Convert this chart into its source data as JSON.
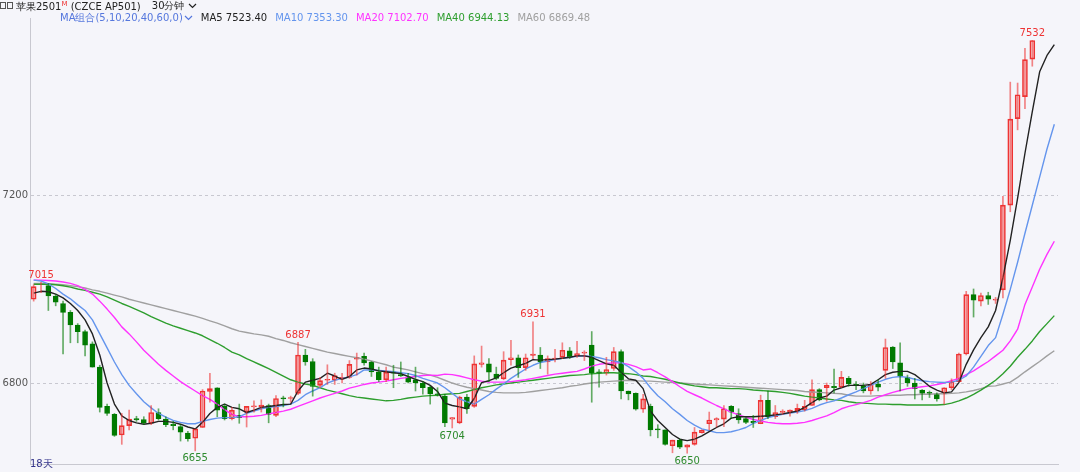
{
  "chart_data": {
    "type": "candlestick",
    "title": "苹果2501$^{M}$ (CZCE AP501)",
    "subtitle": "30分钟",
    "legend_title": "MA组合(5,10,20,40,60,0)",
    "legend": "top left",
    "grid": "y",
    "tick_labels": "y",
    "ylim": [
      6627,
      7580
    ],
    "yticks": [
      6800,
      7200
    ],
    "annotations": [
      {
        "text": "7015",
        "y": 7015
      },
      {
        "text": "6655",
        "y": 6655
      },
      {
        "text": "6887",
        "y": 6887
      },
      {
        "text": "6704",
        "y": 6704
      },
      {
        "text": "6931",
        "y": 6931
      },
      {
        "text": "6650",
        "y": 6650
      },
      {
        "text": "7532",
        "y": 7532
      },
      "18天"
    ],
    "categories": [
      null,
      null,
      null,
      null,
      null,
      null,
      null,
      null,
      null,
      null,
      null,
      null,
      null,
      null,
      null,
      null,
      null,
      null,
      null,
      null,
      null,
      null,
      null,
      null,
      null,
      null,
      null,
      null,
      null,
      null,
      null,
      null,
      null,
      null,
      null,
      null,
      null,
      null,
      null,
      null,
      null,
      null,
      null,
      null,
      null,
      null,
      null,
      null,
      null,
      null,
      null,
      null,
      null,
      null,
      null,
      null,
      null,
      null,
      null,
      null,
      null,
      null,
      null,
      null,
      null,
      null,
      null,
      null,
      null,
      null,
      null,
      null,
      null,
      null,
      null,
      null,
      null,
      null,
      null,
      null,
      null,
      null,
      null,
      null,
      null,
      null,
      null,
      null,
      null,
      null,
      null,
      null,
      null,
      null,
      null,
      null,
      null,
      null,
      null,
      null,
      null,
      null,
      null,
      null,
      null,
      null,
      null,
      null,
      null,
      null,
      null,
      null,
      null,
      null,
      null,
      null,
      null,
      null,
      null,
      null,
      null,
      null,
      null,
      null,
      null,
      null,
      null,
      null,
      null,
      null,
      null,
      null,
      null,
      null,
      null,
      null,
      null,
      null,
      null,
      null
    ],
    "ohlc": [
      [
        6979,
        7010,
        6975,
        7006
      ],
      [
        7010,
        7015,
        6993,
        7013
      ],
      [
        7008,
        7013,
        6955,
        6986
      ],
      [
        6986,
        6989,
        6965,
        6973
      ],
      [
        6970,
        6975,
        6862,
        6951
      ],
      [
        6951,
        6955,
        6886,
        6924
      ],
      [
        6924,
        6927,
        6886,
        6910
      ],
      [
        6910,
        6913,
        6858,
        6881
      ],
      [
        6884,
        6888,
        6834,
        6834
      ],
      [
        6834,
        6838,
        6738,
        6748
      ],
      [
        6750,
        6755,
        6731,
        6735
      ],
      [
        6733,
        6735,
        6686,
        6688
      ],
      [
        6689,
        6735,
        6669,
        6709
      ],
      [
        6709,
        6742,
        6700,
        6723
      ],
      [
        6724,
        6729,
        6718,
        6721
      ],
      [
        6722,
        6728,
        6711,
        6714
      ],
      [
        6714,
        6752,
        6711,
        6737
      ],
      [
        6737,
        6745,
        6721,
        6724
      ],
      [
        6723,
        6728,
        6707,
        6711
      ],
      [
        6712,
        6718,
        6700,
        6709
      ],
      [
        6707,
        6711,
        6676,
        6695
      ],
      [
        6693,
        6697,
        6676,
        6681
      ],
      [
        6682,
        6702,
        6655,
        6702
      ],
      [
        6705,
        6786,
        6705,
        6783
      ],
      [
        6782,
        6821,
        6759,
        6788
      ],
      [
        6790,
        6790,
        6728,
        6742
      ],
      [
        6750,
        6755,
        6721,
        6724
      ],
      [
        6724,
        6748,
        6721,
        6742
      ],
      [
        6731,
        6755,
        6714,
        6726
      ],
      [
        6738,
        6750,
        6706,
        6750
      ],
      [
        6749,
        6762,
        6738,
        6749
      ],
      [
        6749,
        6764,
        6738,
        6753
      ],
      [
        6752,
        6755,
        6715,
        6733
      ],
      [
        6731,
        6773,
        6728,
        6767
      ],
      [
        6768,
        6772,
        6749,
        6766
      ],
      [
        6767,
        6772,
        6759,
        6767
      ],
      [
        6778,
        6887,
        6775,
        6860
      ],
      [
        6860,
        6872,
        6838,
        6845
      ],
      [
        6846,
        6852,
        6772,
        6793
      ],
      [
        6795,
        6812,
        6790,
        6805
      ],
      [
        6806,
        6839,
        6797,
        6808
      ],
      [
        6806,
        6821,
        6797,
        6816
      ],
      [
        6810,
        6821,
        6800,
        6810
      ],
      [
        6812,
        6848,
        6810,
        6840
      ],
      [
        6851,
        6864,
        6817,
        6855
      ],
      [
        6857,
        6864,
        6838,
        6843
      ],
      [
        6845,
        6846,
        6814,
        6824
      ],
      [
        6824,
        6834,
        6803,
        6807
      ],
      [
        6807,
        6834,
        6803,
        6823
      ],
      [
        6824,
        6838,
        6790,
        6821
      ],
      [
        6818,
        6845,
        6814,
        6815
      ],
      [
        6812,
        6821,
        6800,
        6802
      ],
      [
        6807,
        6834,
        6783,
        6800
      ],
      [
        6800,
        6803,
        6776,
        6790
      ],
      [
        6791,
        6793,
        6755,
        6777
      ],
      [
        6777,
        6790,
        6772,
        6775
      ],
      [
        6772,
        6776,
        6707,
        6715
      ],
      [
        6723,
        6726,
        6704,
        6726
      ],
      [
        6715,
        6772,
        6713,
        6770
      ],
      [
        6770,
        6776,
        6735,
        6745
      ],
      [
        6750,
        6858,
        6748,
        6841
      ],
      [
        6840,
        6879,
        6834,
        6843
      ],
      [
        6841,
        6852,
        6803,
        6823
      ],
      [
        6819,
        6834,
        6807,
        6810
      ],
      [
        6809,
        6867,
        6807,
        6849
      ],
      [
        6850,
        6891,
        6838,
        6854
      ],
      [
        6854,
        6860,
        6812,
        6833
      ],
      [
        6833,
        6862,
        6827,
        6854
      ],
      [
        6859,
        6931,
        6852,
        6862
      ],
      [
        6860,
        6876,
        6831,
        6845
      ],
      [
        6845,
        6858,
        6819,
        6852
      ],
      [
        6851,
        6872,
        6845,
        6851
      ],
      [
        6855,
        6886,
        6852,
        6870
      ],
      [
        6869,
        6876,
        6852,
        6855
      ],
      [
        6858,
        6889,
        6855,
        6863
      ],
      [
        6864,
        6869,
        6848,
        6864
      ],
      [
        6881,
        6910,
        6759,
        6821
      ],
      [
        6824,
        6829,
        6791,
        6821
      ],
      [
        6821,
        6855,
        6817,
        6829
      ],
      [
        6831,
        6876,
        6827,
        6867
      ],
      [
        6867,
        6871,
        6766,
        6783
      ],
      [
        6783,
        6783,
        6764,
        6777
      ],
      [
        6778,
        6779,
        6742,
        6744
      ],
      [
        6744,
        6776,
        6737,
        6766
      ],
      [
        6750,
        6755,
        6687,
        6700
      ],
      [
        6702,
        6711,
        6683,
        6700
      ],
      [
        6700,
        6700,
        6667,
        6669
      ],
      [
        6666,
        6678,
        6651,
        6678
      ],
      [
        6678,
        6680,
        6660,
        6663
      ],
      [
        6663,
        6668,
        6650,
        6668
      ],
      [
        6669,
        6705,
        6667,
        6695
      ],
      [
        6694,
        6700,
        6693,
        6699
      ],
      [
        6713,
        6738,
        6700,
        6721
      ],
      [
        6721,
        6726,
        6706,
        6724
      ],
      [
        6723,
        6752,
        6707,
        6745
      ],
      [
        6750,
        6752,
        6724,
        6738
      ],
      [
        6735,
        6745,
        6714,
        6721
      ],
      [
        6724,
        6726,
        6713,
        6716
      ],
      [
        6718,
        6731,
        6705,
        6715
      ],
      [
        6713,
        6774,
        6713,
        6763
      ],
      [
        6763,
        6783,
        6724,
        6728
      ],
      [
        6728,
        6752,
        6724,
        6737
      ],
      [
        6737,
        6743,
        6733,
        6740
      ],
      [
        6738,
        6743,
        6729,
        6742
      ],
      [
        6740,
        6755,
        6735,
        6746
      ],
      [
        6743,
        6763,
        6740,
        6750
      ],
      [
        6752,
        6807,
        6752,
        6786
      ],
      [
        6786,
        6788,
        6762,
        6764
      ],
      [
        6790,
        6800,
        6761,
        6795
      ],
      [
        6793,
        6830,
        6779,
        6790
      ],
      [
        6791,
        6825,
        6790,
        6812
      ],
      [
        6810,
        6814,
        6793,
        6798
      ],
      [
        6797,
        6803,
        6786,
        6795
      ],
      [
        6793,
        6800,
        6779,
        6783
      ],
      [
        6783,
        6803,
        6776,
        6798
      ],
      [
        6798,
        6807,
        6783,
        6791
      ],
      [
        6827,
        6894,
        6810,
        6876
      ],
      [
        6877,
        6878,
        6831,
        6845
      ],
      [
        6843,
        6886,
        6783,
        6814
      ],
      [
        6812,
        6817,
        6793,
        6800
      ],
      [
        6800,
        6810,
        6766,
        6788
      ],
      [
        6785,
        6786,
        6764,
        6778
      ],
      [
        6780,
        6783,
        6769,
        6778
      ],
      [
        6777,
        6779,
        6761,
        6766
      ],
      [
        6777,
        6790,
        6755,
        6790
      ],
      [
        6790,
        6809,
        6786,
        6803
      ],
      [
        6803,
        6864,
        6803,
        6862
      ],
      [
        6862,
        6996,
        6860,
        6989
      ],
      [
        6989,
        7001,
        6941,
        6977
      ],
      [
        6975,
        6992,
        6965,
        6987
      ],
      [
        6987,
        6994,
        6968,
        6979
      ],
      [
        6977,
        6983,
        6970,
        6979
      ],
      [
        6999,
        7199,
        6982,
        7180
      ],
      [
        7180,
        7443,
        7166,
        7364
      ],
      [
        7365,
        7441,
        7341,
        7416
      ],
      [
        7412,
        7515,
        7386,
        7491
      ],
      [
        7492,
        7532,
        7477,
        7532
      ],
      null,
      null,
      null
    ],
    "series": [
      {
        "type": "line",
        "name": "MA5 7523.40",
        "color": "#222222",
        "values": [
          6992,
          6996,
          6995,
          6990,
          6982,
          6970,
          6955,
          6935,
          6905,
          6860,
          6800,
          6755,
          6730,
          6720,
          6715,
          6712,
          6714,
          6718,
          6718,
          6716,
          6712,
          6706,
          6702,
          6716,
          6735,
          6748,
          6755,
          6748,
          6745,
          6737,
          6742,
          6748,
          6750,
          6752,
          6754,
          6755,
          6783,
          6802,
          6806,
          6810,
          6821,
          6815,
          6808,
          6814,
          6828,
          6832,
          6830,
          6826,
          6824,
          6822,
          6820,
          6814,
          6808,
          6803,
          6795,
          6782,
          6757,
          6752,
          6749,
          6745,
          6767,
          6801,
          6805,
          6811,
          6822,
          6832,
          6837,
          6842,
          6850,
          6849,
          6850,
          6851,
          6853,
          6855,
          6858,
          6858,
          6855,
          6848,
          6841,
          6838,
          6823,
          6809,
          6806,
          6788,
          6740,
          6720,
          6705,
          6690,
          6680,
          6677,
          6680,
          6687,
          6696,
          6705,
          6713,
          6725,
          6728,
          6728,
          6728,
          6729,
          6730,
          6732,
          6734,
          6737,
          6740,
          6748,
          6758,
          6768,
          6772,
          6785,
          6790,
          6795,
          6795,
          6795,
          6797,
          6807,
          6818,
          6823,
          6825,
          6825,
          6818,
          6806,
          6793,
          6785,
          6779,
          6781,
          6801,
          6840,
          6871,
          6897,
          6920,
          6955,
          7025,
          7105,
          7195,
          7291,
          7380,
          7465,
          7500,
          7523
        ]
      },
      {
        "type": "line",
        "name": "MA10 7353.30",
        "color": "#6495ed",
        "values": [
          7020,
          7018,
          7012,
          7002,
          6990,
          6980,
          6967,
          6955,
          6935,
          6905,
          6875,
          6845,
          6818,
          6795,
          6777,
          6760,
          6747,
          6735,
          6727,
          6720,
          6716,
          6713,
          6713,
          6718,
          6722,
          6725,
          6726,
          6726,
          6728,
          6735,
          6740,
          6745,
          6748,
          6750,
          6752,
          6755,
          6763,
          6775,
          6783,
          6790,
          6800,
          6806,
          6810,
          6813,
          6818,
          6828,
          6828,
          6827,
          6826,
          6824,
          6822,
          6820,
          6816,
          6810,
          6805,
          6800,
          6790,
          6778,
          6766,
          6760,
          6755,
          6765,
          6775,
          6787,
          6798,
          6810,
          6820,
          6830,
          6838,
          6844,
          6847,
          6850,
          6853,
          6855,
          6857,
          6858,
          6857,
          6854,
          6850,
          6847,
          6844,
          6835,
          6824,
          6810,
          6790,
          6773,
          6760,
          6745,
          6733,
          6720,
          6710,
          6702,
          6698,
          6694,
          6694,
          6696,
          6700,
          6705,
          6714,
          6720,
          6726,
          6730,
          6733,
          6736,
          6738,
          6741,
          6746,
          6753,
          6758,
          6762,
          6768,
          6775,
          6781,
          6788,
          6795,
          6802,
          6808,
          6812,
          6814,
          6812,
          6808,
          6805,
          6803,
          6802,
          6801,
          6802,
          6806,
          6815,
          6834,
          6857,
          6880,
          6897,
          6947,
          7000,
          7058,
          7120,
          7180,
          7240,
          7300,
          7353
        ]
      },
      {
        "type": "line",
        "name": "MA20 7102.70",
        "color": "#ff33ff",
        "values": [
          7020,
          7020,
          7019,
          7018,
          7016,
          7013,
          7008,
          7000,
          6990,
          6975,
          6958,
          6940,
          6920,
          6905,
          6888,
          6870,
          6855,
          6840,
          6827,
          6815,
          6803,
          6793,
          6783,
          6773,
          6765,
          6755,
          6743,
          6733,
          6728,
          6728,
          6729,
          6731,
          6734,
          6737,
          6740,
          6744,
          6750,
          6756,
          6762,
          6768,
          6773,
          6778,
          6783,
          6789,
          6793,
          6797,
          6800,
          6802,
          6804,
          6807,
          6810,
          6812,
          6814,
          6816,
          6817,
          6816,
          6819,
          6818,
          6815,
          6811,
          6807,
          6804,
          6802,
          6802,
          6802,
          6803,
          6805,
          6807,
          6810,
          6813,
          6816,
          6819,
          6821,
          6823,
          6825,
          6830,
          6836,
          6840,
          6842,
          6843,
          6843,
          6840,
          6835,
          6828,
          6830,
          6822,
          6813,
          6803,
          6792,
          6782,
          6775,
          6768,
          6760,
          6752,
          6745,
          6738,
          6732,
          6727,
          6722,
          6719,
          6716,
          6714,
          6713,
          6713,
          6714,
          6716,
          6720,
          6725,
          6730,
          6737,
          6745,
          6750,
          6754,
          6758,
          6763,
          6770,
          6775,
          6780,
          6784,
          6788,
          6790,
          6792,
          6794,
          6797,
          6800,
          6805,
          6810,
          6818,
          6826,
          6836,
          6846,
          6858,
          6870,
          6890,
          6915,
          6968,
          7005,
          7043,
          7075,
          7103
        ]
      },
      {
        "type": "line",
        "name": "MA40 6944.13",
        "color": "#2e9e2e",
        "values": [
          7011,
          7011,
          7011,
          7010,
          7008,
          7005,
          7001,
          6998,
          6994,
          6990,
          6984,
          6977,
          6970,
          6964,
          6957,
          6950,
          6942,
          6935,
          6928,
          6922,
          6917,
          6912,
          6907,
          6901,
          6893,
          6885,
          6876,
          6866,
          6860,
          6852,
          6845,
          6838,
          6831,
          6823,
          6815,
          6807,
          6802,
          6798,
          6795,
          6790,
          6785,
          6781,
          6777,
          6773,
          6770,
          6768,
          6766,
          6764,
          6762,
          6763,
          6765,
          6768,
          6770,
          6772,
          6773,
          6774,
          6776,
          6777,
          6778,
          6782,
          6786,
          6790,
          6793,
          6796,
          6798,
          6800,
          6802,
          6804,
          6806,
          6808,
          6810,
          6812,
          6814,
          6816,
          6817,
          6818,
          6820,
          6821,
          6822,
          6822,
          6821,
          6820,
          6818,
          6815,
          6814,
          6811,
          6808,
          6804,
          6800,
          6797,
          6794,
          6792,
          6790,
          6790,
          6789,
          6788,
          6788,
          6787,
          6785,
          6784,
          6783,
          6782,
          6780,
          6778,
          6775,
          6772,
          6770,
          6768,
          6766,
          6764,
          6763,
          6760,
          6758,
          6757,
          6756,
          6755,
          6755,
          6754,
          6754,
          6753,
          6753,
          6753,
          6753,
          6753,
          6754,
          6757,
          6762,
          6768,
          6776,
          6785,
          6795,
          6806,
          6820,
          6836,
          6855,
          6872,
          6890,
          6910,
          6927,
          6944
        ]
      },
      {
        "type": "line",
        "name": "MA60 6869.48",
        "color": "#a0a0a0",
        "values": [
          7013,
          7013,
          7012,
          7011,
          7010,
          7008,
          7006,
          7003,
          6999,
          6996,
          6992,
          6988,
          6984,
          6979,
          6975,
          6971,
          6967,
          6963,
          6959,
          6955,
          6951,
          6947,
          6943,
          6938,
          6933,
          6928,
          6922,
          6916,
          6911,
          6908,
          6905,
          6903,
          6900,
          6895,
          6891,
          6886,
          6882,
          6878,
          6874,
          6870,
          6866,
          6863,
          6860,
          6857,
          6854,
          6851,
          6847,
          6843,
          6839,
          6834,
          6831,
          6828,
          6824,
          6820,
          6817,
          6812,
          6806,
          6800,
          6795,
          6791,
          6788,
          6785,
          6782,
          6780,
          6779,
          6779,
          6779,
          6780,
          6782,
          6784,
          6786,
          6788,
          6790,
          6793,
          6795,
          6798,
          6800,
          6802,
          6803,
          6804,
          6805,
          6806,
          6805,
          6804,
          6804,
          6803,
          6802,
          6801,
          6800,
          6799,
          6798,
          6797,
          6796,
          6795,
          6794,
          6793,
          6792,
          6791,
          6790,
          6789,
          6788,
          6787,
          6786,
          6785,
          6784,
          6782,
          6781,
          6780,
          6779,
          6778,
          6777,
          6774,
          6772,
          6772,
          6772,
          6773,
          6773,
          6774,
          6774,
          6775,
          6775,
          6776,
          6776,
          6777,
          6777,
          6778,
          6779,
          6781,
          6784,
          6788,
          6793,
          6794,
          6798,
          6802,
          6812,
          6824,
          6835,
          6846,
          6858,
          6869
        ]
      }
    ]
  }
}
